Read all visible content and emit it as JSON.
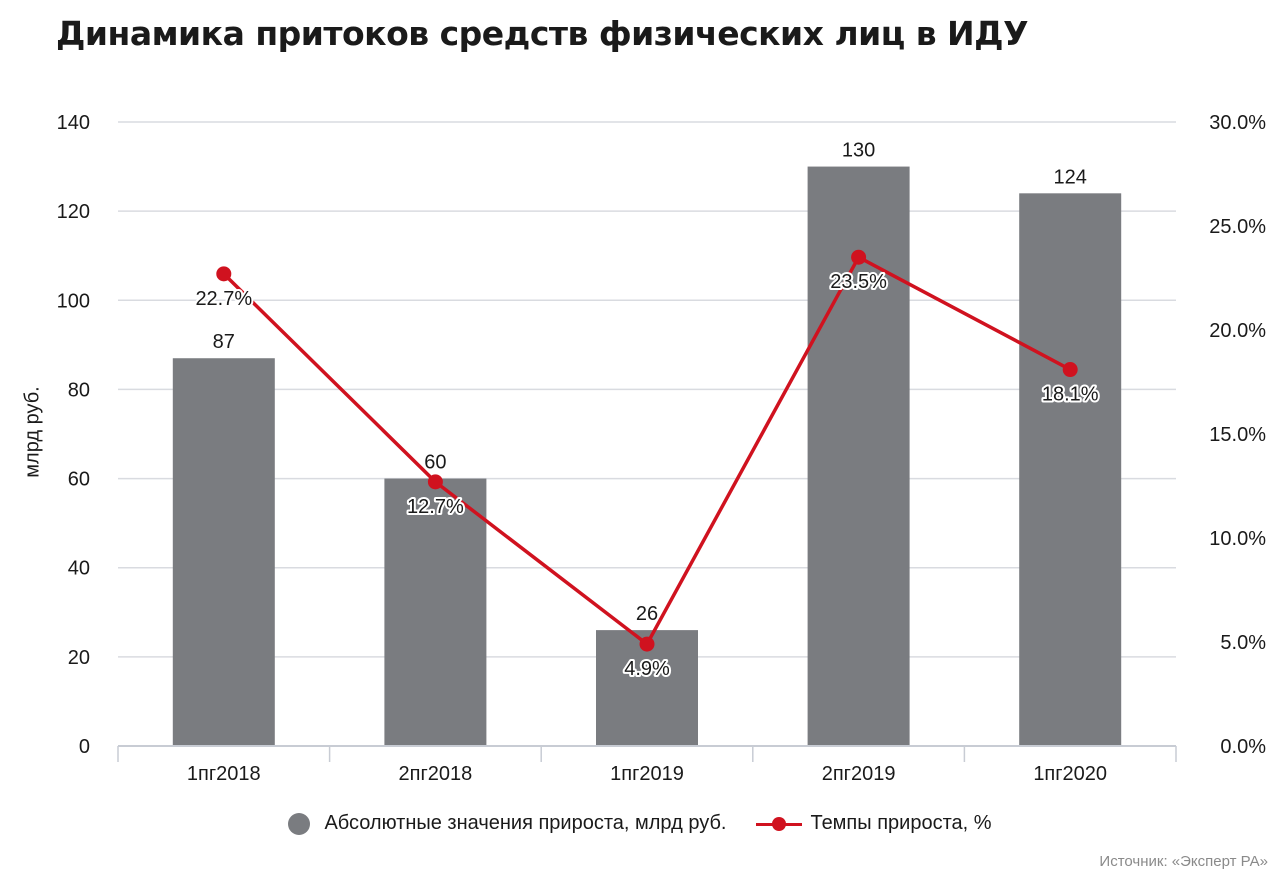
{
  "title": "Динамика притоков средств физических лиц в ИДУ",
  "source": "Источник: «Эксперт РА»",
  "colors": {
    "bar": "#7a7c80",
    "line": "#d0121f",
    "grid": "#d9dbe0",
    "text": "#1a1a1a"
  },
  "chart_data": {
    "type": "bar",
    "title": "Динамика притоков средств физических лиц в ИДУ",
    "categories": [
      "1пг2018",
      "2пг2018",
      "1пг2019",
      "2пг2019",
      "1пг2020"
    ],
    "ylabel": "млрд руб.",
    "ylim": [
      0,
      140
    ],
    "yticks": [
      0,
      20,
      40,
      60,
      80,
      100,
      120,
      140
    ],
    "y2lim": [
      0,
      30
    ],
    "y2ticks": [
      "0.0%",
      "5.0%",
      "10.0%",
      "15.0%",
      "20.0%",
      "25.0%",
      "30.0%"
    ],
    "grid": true,
    "legend_position": "bottom",
    "series": [
      {
        "name": "Абсолютные значения прироста, млрд руб.",
        "type": "bar",
        "axis": "left",
        "values": [
          87,
          60,
          26,
          130,
          124
        ],
        "labels": [
          "87",
          "60",
          "26",
          "130",
          "124"
        ]
      },
      {
        "name": "Темпы прироста, %",
        "type": "line",
        "axis": "right",
        "values": [
          22.7,
          12.7,
          4.9,
          23.5,
          18.1
        ],
        "labels": [
          "22.7%",
          "12.7%",
          "4.9%",
          "23.5%",
          "18.1%"
        ]
      }
    ]
  }
}
